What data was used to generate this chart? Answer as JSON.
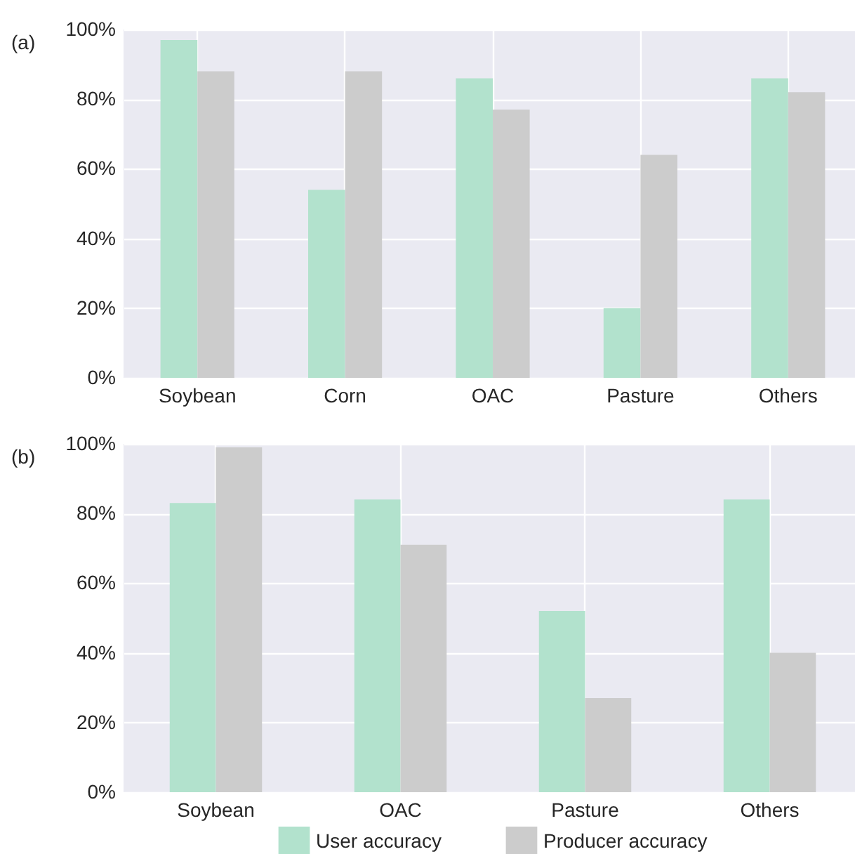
{
  "chart_data": [
    {
      "type": "bar",
      "title": "(a)",
      "legend": "bottom",
      "categories": [
        "Soybean",
        "Corn",
        "OAC",
        "Pasture",
        "Others"
      ],
      "series": [
        {
          "name": "User accuracy",
          "color": "#b2e2cd",
          "values": [
            97,
            54,
            86,
            20,
            86
          ]
        },
        {
          "name": "Producer accuracy",
          "color": "#cccccc",
          "values": [
            88,
            88,
            77,
            64,
            82
          ]
        }
      ],
      "ylim": [
        0,
        100
      ],
      "yticks": [
        {
          "value": 0,
          "label": "0%"
        },
        {
          "value": 20,
          "label": "20%"
        },
        {
          "value": 40,
          "label": "40%"
        },
        {
          "value": 60,
          "label": "60%"
        },
        {
          "value": 80,
          "label": "80%"
        },
        {
          "value": 100,
          "label": "100%"
        }
      ],
      "grid": true
    },
    {
      "type": "bar",
      "title": "(b)",
      "categories": [
        "Soybean",
        "OAC",
        "Pasture",
        "Others"
      ],
      "series": [
        {
          "name": "User accuracy",
          "color": "#b2e2cd",
          "values": [
            83,
            84,
            52,
            84
          ]
        },
        {
          "name": "Producer accuracy",
          "color": "#cccccc",
          "values": [
            99,
            71,
            27,
            40
          ]
        }
      ],
      "ylim": [
        0,
        100
      ],
      "yticks": [
        {
          "value": 0,
          "label": "0%"
        },
        {
          "value": 20,
          "label": "20%"
        },
        {
          "value": 40,
          "label": "40%"
        },
        {
          "value": 60,
          "label": "60%"
        },
        {
          "value": 80,
          "label": "80%"
        },
        {
          "value": 100,
          "label": "100%"
        }
      ],
      "grid": true,
      "legend": "bottom"
    }
  ]
}
